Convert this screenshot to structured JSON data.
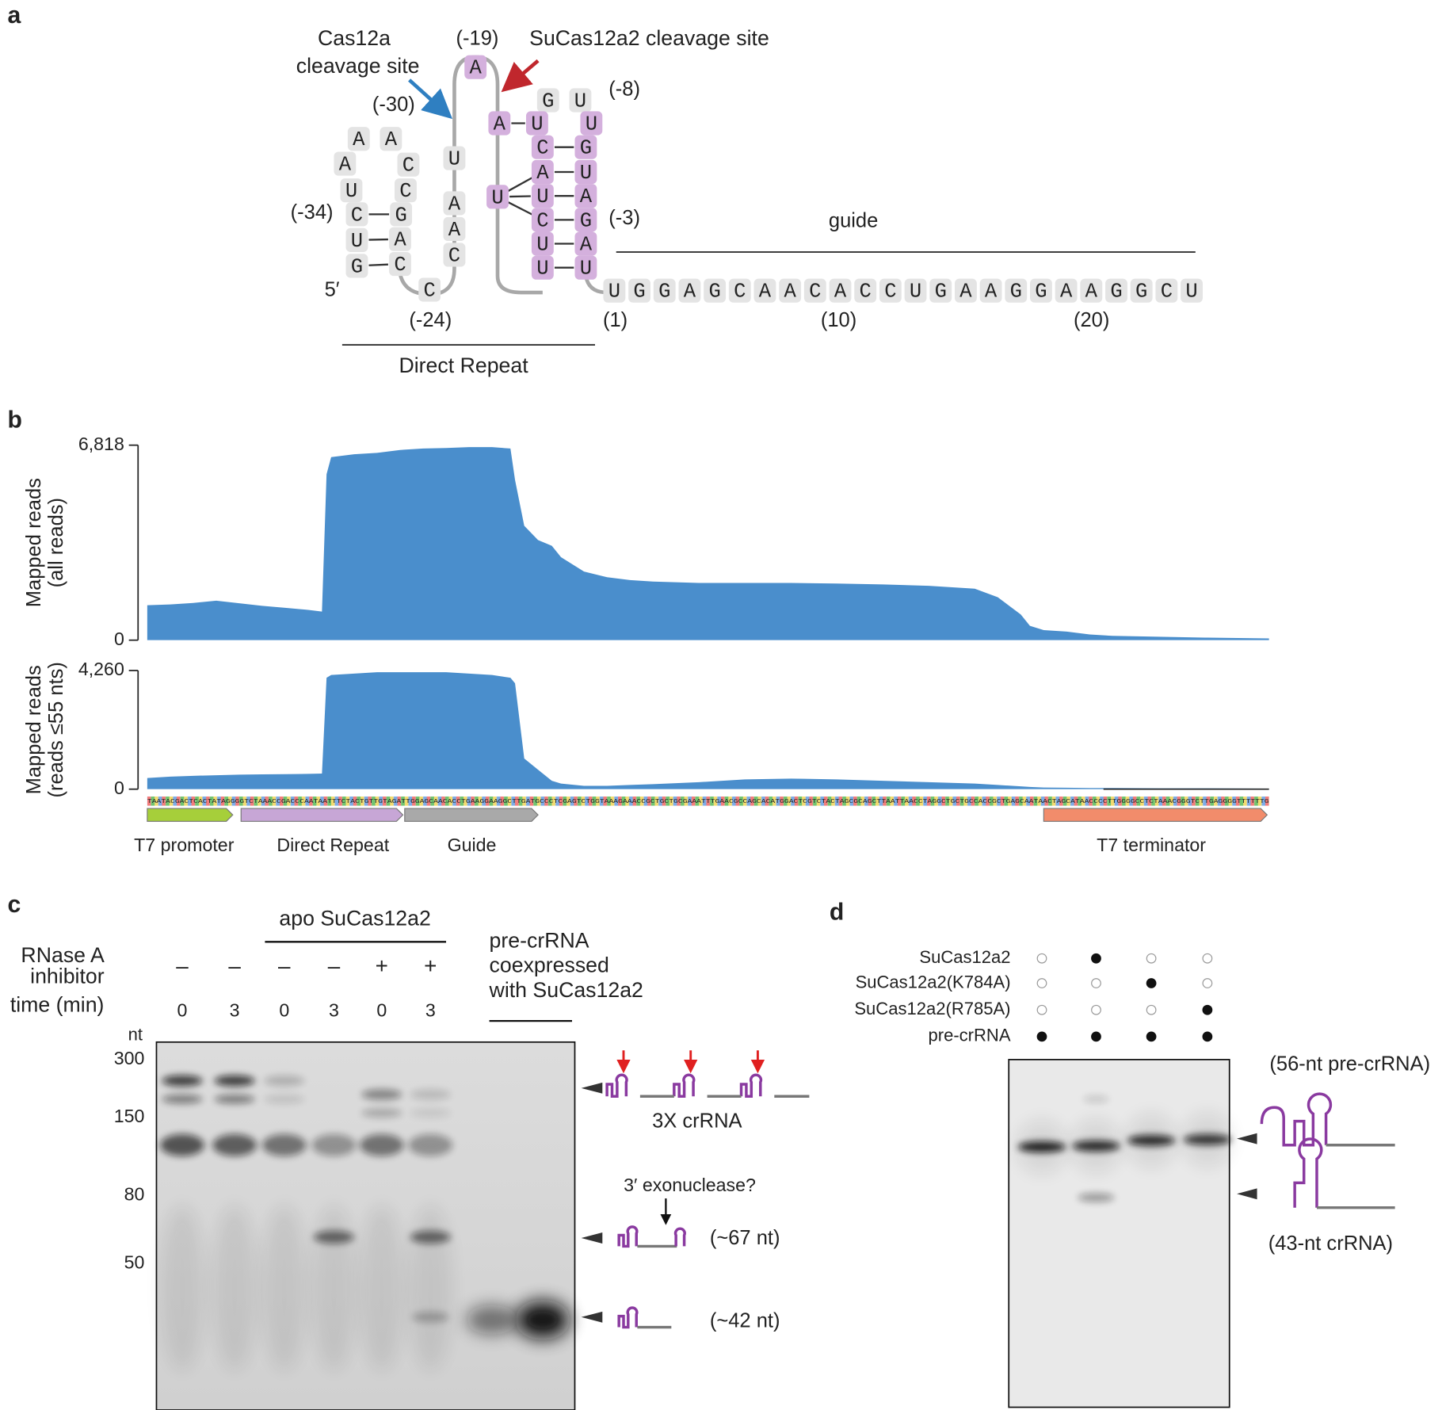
{
  "panel_labels": [
    "a",
    "b",
    "c",
    "d"
  ],
  "panel_a": {
    "nucleotides": [
      "G",
      "U",
      "C",
      "U",
      "A",
      "A",
      "A",
      "C",
      "C",
      "G",
      "A",
      "C",
      "C",
      "C",
      "A",
      "A",
      "U",
      "A",
      "U",
      "A",
      "G",
      "U",
      "U",
      "C",
      "A",
      "U",
      "C",
      "U",
      "U",
      "U",
      "G",
      "U",
      "A",
      "G",
      "A",
      "U"
    ],
    "guide_sequence": [
      "U",
      "G",
      "G",
      "A",
      "G",
      "C",
      "A",
      "A",
      "C",
      "A",
      "C",
      "C",
      "U",
      "G",
      "A",
      "A",
      "G",
      "G",
      "A",
      "A",
      "G",
      "G",
      "C",
      "U"
    ],
    "labels": {
      "cas12a_site": [
        "Cas12a",
        "cleavage site"
      ],
      "sucas12a2_site": "SuCas12a2 cleavage site",
      "pos_m19": "(-19)",
      "pos_m8": "(-8)",
      "pos_m30": "(-30)",
      "pos_m34": "(-34)",
      "pos_m3": "(-3)",
      "guide": "guide",
      "five_prime": "5′",
      "pos_m24": "(-24)",
      "pos_1": "(1)",
      "pos_10": "(10)",
      "pos_20": "(20)",
      "direct_repeat": "Direct Repeat"
    }
  },
  "chart_data": [
    {
      "type": "area",
      "y_title": [
        "Mapped reads",
        "(all reads)"
      ],
      "x": [
        0,
        5,
        10,
        15,
        20,
        25,
        30,
        35,
        38,
        39,
        40,
        45,
        50,
        55,
        60,
        65,
        70,
        75,
        79,
        80,
        82,
        85,
        88,
        90,
        95,
        100,
        105,
        110,
        120,
        130,
        140,
        150,
        160,
        170,
        180,
        185,
        190,
        192,
        195,
        200,
        205,
        210,
        220,
        230,
        244
      ],
      "xlim": [
        0,
        244
      ],
      "ylim": [
        0,
        6818
      ],
      "yticks": [
        0,
        {
          "value": 6818,
          "label": "6,818"
        }
      ],
      "series": [
        {
          "color": "#4a8ecc",
          "values": [
            1220,
            1250,
            1300,
            1380,
            1290,
            1200,
            1130,
            1060,
            1000,
            5800,
            6400,
            6500,
            6550,
            6650,
            6700,
            6720,
            6750,
            6750,
            6700,
            5600,
            4000,
            3500,
            3300,
            2900,
            2400,
            2200,
            2100,
            2050,
            2000,
            2000,
            2000,
            1980,
            1950,
            1900,
            1800,
            1500,
            900,
            500,
            350,
            300,
            200,
            150,
            120,
            90,
            60
          ]
        }
      ]
    },
    {
      "type": "area",
      "y_title": [
        "Mapped reads",
        "(reads ≤55 nts)"
      ],
      "x": [
        0,
        5,
        10,
        15,
        20,
        25,
        30,
        35,
        38,
        39,
        40,
        45,
        50,
        55,
        60,
        65,
        70,
        75,
        79,
        80,
        82,
        85,
        88,
        90,
        95,
        100,
        105,
        110,
        120,
        130,
        140,
        150,
        160,
        170,
        180,
        185,
        190,
        192,
        195,
        200,
        205,
        210,
        220,
        230,
        244
      ],
      "xlim": [
        0,
        244
      ],
      "ylim": [
        0,
        4260
      ],
      "yticks": [
        0,
        {
          "value": 4260,
          "label": "4,260"
        }
      ],
      "series": [
        {
          "color": "#4a8ecc",
          "values": [
            400,
            450,
            480,
            500,
            520,
            530,
            540,
            550,
            560,
            4000,
            4100,
            4150,
            4200,
            4200,
            4200,
            4200,
            4150,
            4100,
            4000,
            3800,
            1100,
            700,
            300,
            200,
            120,
            120,
            150,
            180,
            250,
            350,
            380,
            350,
            300,
            250,
            200,
            150,
            100,
            80,
            60,
            50,
            40,
            40,
            30,
            30,
            20
          ]
        }
      ]
    }
  ],
  "panel_b": {
    "sequence": "TAATACGACTCACTATAGGGGTCTAAACCGACCCAATAATTTCTACTGTTGTAGATTGGAGCAACACCTGAAGGAAGGCTTGATGCCCTCGAGTCTGGTAAAGAAACCGCTGCTGCGAAATTTGAACGCCAGCACATGGACTCGTCTACTAGCGCAGCTTAATTAACCTAGGCTGCTGCCACCGCTGAGCAATAACTAGCATAACCCCTTGGGGCCTCTAAACGGGTCTTGAGGGGTTTTTTG",
    "features": [
      {
        "label": "T7 promoter",
        "color": "#a6cf3a"
      },
      {
        "label": "Direct Repeat",
        "color": "#c7a6d6"
      },
      {
        "label": "Guide",
        "color": "#a9a9a9"
      },
      {
        "label": "T7 terminator",
        "color": "#f28c6b"
      }
    ]
  },
  "panel_c": {
    "group_label": "apo SuCas12a2",
    "inhibitor_label": [
      "RNase A",
      "inhibitor"
    ],
    "time_label": "time (min)",
    "inhibitor": [
      "–",
      "–",
      "–",
      "–",
      "+",
      "+"
    ],
    "time": [
      0,
      3,
      0,
      3,
      0,
      3
    ],
    "coexpressed_label": [
      "pre-crRNA",
      "coexpressed",
      "with SuCas12a2"
    ],
    "ladder_unit": "nt",
    "ladder": [
      300,
      150,
      80,
      50
    ],
    "band_labels": [
      "3X crRNA",
      "3′ exonuclease?",
      "(~67 nt)",
      "(~42 nt)"
    ]
  },
  "panel_d": {
    "conditions": [
      "SuCas12a2",
      "SuCas12a2(K784A)",
      "SuCas12a2(R785A)",
      "pre-crRNA"
    ],
    "band_labels": [
      "(56-nt pre-crRNA)",
      "(43-nt crRNA)"
    ]
  }
}
